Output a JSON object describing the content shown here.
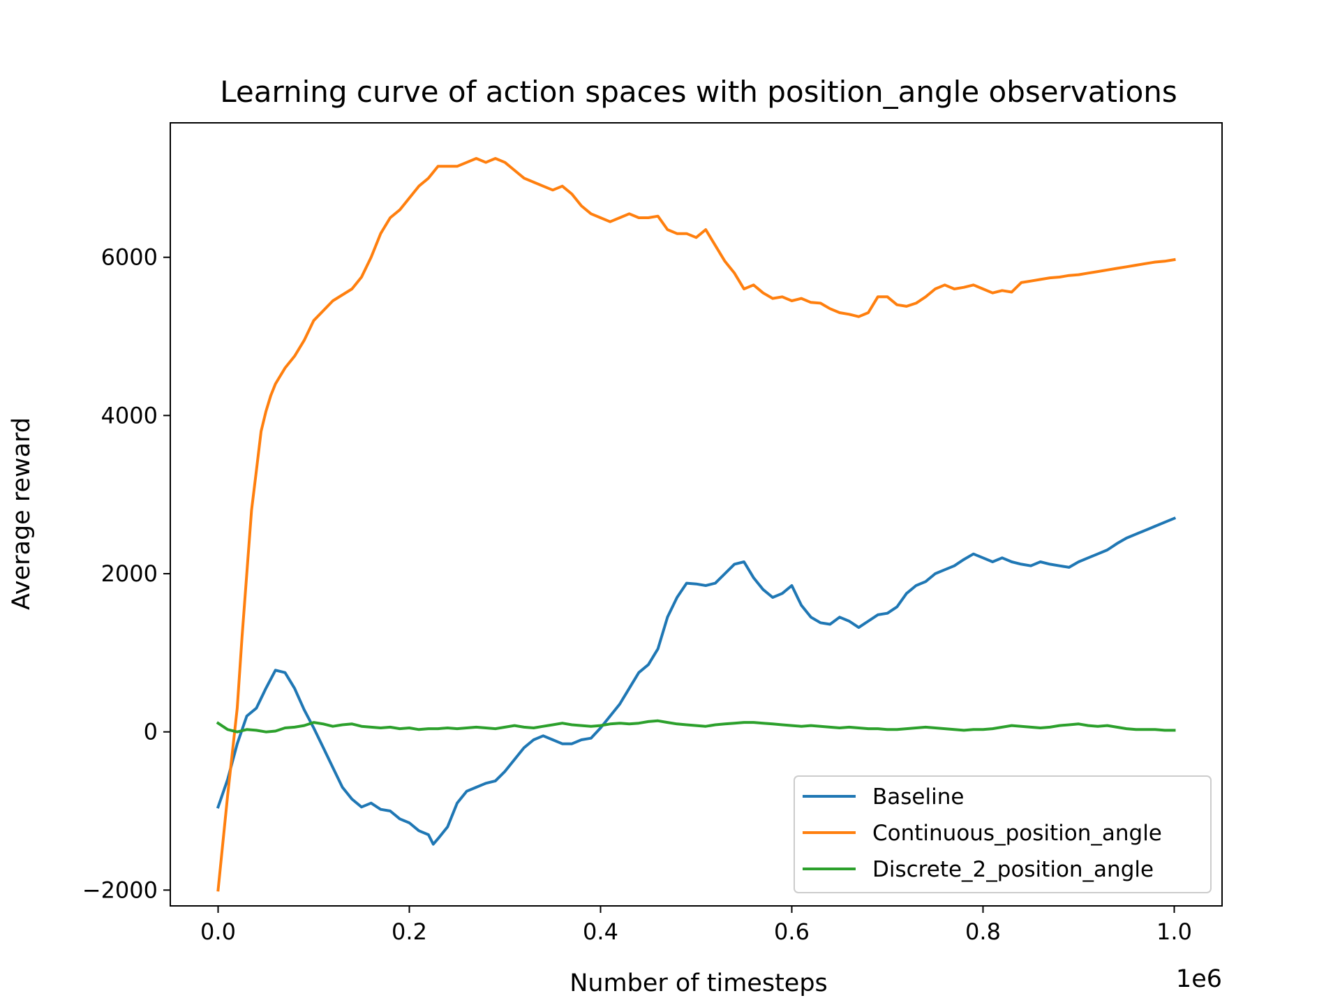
{
  "chart_data": {
    "type": "line",
    "title": "Learning curve of action spaces with position_angle observations",
    "xlabel": "Number of timesteps",
    "ylabel": "Average reward",
    "x_offset_label": "1e6",
    "xlim": [
      -0.05,
      1.05
    ],
    "ylim": [
      -2200,
      7700
    ],
    "x_ticks": [
      0.0,
      0.2,
      0.4,
      0.6,
      0.8,
      1.0
    ],
    "x_tick_labels": [
      "0.0",
      "0.2",
      "0.4",
      "0.6",
      "0.8",
      "1.0"
    ],
    "y_ticks": [
      -2000,
      0,
      2000,
      4000,
      6000
    ],
    "y_tick_labels": [
      "−2000",
      "0",
      "2000",
      "4000",
      "6000"
    ],
    "legend_position": "lower-right",
    "grid": false,
    "series": [
      {
        "name": "Baseline",
        "color": "#1f77b4",
        "x": [
          0.0,
          0.01,
          0.02,
          0.03,
          0.04,
          0.05,
          0.06,
          0.07,
          0.08,
          0.09,
          0.1,
          0.11,
          0.12,
          0.13,
          0.14,
          0.15,
          0.16,
          0.17,
          0.18,
          0.19,
          0.2,
          0.21,
          0.22,
          0.225,
          0.23,
          0.24,
          0.25,
          0.26,
          0.27,
          0.28,
          0.29,
          0.3,
          0.31,
          0.32,
          0.33,
          0.34,
          0.35,
          0.36,
          0.37,
          0.38,
          0.39,
          0.4,
          0.41,
          0.42,
          0.43,
          0.44,
          0.45,
          0.46,
          0.47,
          0.48,
          0.49,
          0.5,
          0.51,
          0.52,
          0.53,
          0.54,
          0.55,
          0.56,
          0.57,
          0.58,
          0.59,
          0.6,
          0.61,
          0.62,
          0.63,
          0.64,
          0.65,
          0.66,
          0.67,
          0.68,
          0.69,
          0.7,
          0.71,
          0.72,
          0.73,
          0.74,
          0.75,
          0.76,
          0.77,
          0.78,
          0.79,
          0.8,
          0.81,
          0.82,
          0.83,
          0.84,
          0.85,
          0.86,
          0.87,
          0.88,
          0.89,
          0.9,
          0.91,
          0.92,
          0.93,
          0.94,
          0.95,
          0.96,
          0.97,
          0.98,
          0.99,
          1.0
        ],
        "y": [
          -950,
          -600,
          -150,
          200,
          300,
          550,
          780,
          750,
          550,
          280,
          50,
          -200,
          -450,
          -700,
          -850,
          -950,
          -900,
          -980,
          -1000,
          -1100,
          -1150,
          -1250,
          -1300,
          -1420,
          -1350,
          -1200,
          -900,
          -750,
          -700,
          -650,
          -620,
          -500,
          -350,
          -200,
          -100,
          -50,
          -100,
          -150,
          -150,
          -100,
          -80,
          50,
          200,
          350,
          550,
          750,
          850,
          1050,
          1450,
          1700,
          1880,
          1870,
          1850,
          1880,
          2000,
          2120,
          2150,
          1950,
          1800,
          1700,
          1750,
          1850,
          1600,
          1450,
          1380,
          1360,
          1450,
          1400,
          1320,
          1400,
          1480,
          1500,
          1580,
          1750,
          1850,
          1900,
          2000,
          2050,
          2100,
          2180,
          2250,
          2200,
          2150,
          2200,
          2150,
          2120,
          2100,
          2150,
          2120,
          2100,
          2080,
          2150,
          2200,
          2250,
          2300,
          2380,
          2450,
          2500,
          2550,
          2600,
          2650,
          2700
        ]
      },
      {
        "name": "Continuous_position_angle",
        "color": "#ff7f0e",
        "x": [
          0.0,
          0.01,
          0.02,
          0.025,
          0.03,
          0.035,
          0.04,
          0.045,
          0.05,
          0.055,
          0.06,
          0.07,
          0.08,
          0.09,
          0.1,
          0.12,
          0.14,
          0.15,
          0.16,
          0.17,
          0.18,
          0.19,
          0.2,
          0.21,
          0.22,
          0.23,
          0.24,
          0.25,
          0.26,
          0.27,
          0.28,
          0.29,
          0.3,
          0.31,
          0.32,
          0.33,
          0.34,
          0.35,
          0.36,
          0.37,
          0.38,
          0.39,
          0.4,
          0.41,
          0.42,
          0.43,
          0.44,
          0.45,
          0.46,
          0.47,
          0.48,
          0.49,
          0.5,
          0.51,
          0.52,
          0.53,
          0.54,
          0.55,
          0.56,
          0.57,
          0.58,
          0.59,
          0.6,
          0.61,
          0.62,
          0.63,
          0.64,
          0.65,
          0.66,
          0.67,
          0.68,
          0.69,
          0.7,
          0.71,
          0.72,
          0.73,
          0.74,
          0.75,
          0.76,
          0.77,
          0.78,
          0.79,
          0.8,
          0.81,
          0.82,
          0.83,
          0.84,
          0.85,
          0.86,
          0.87,
          0.88,
          0.89,
          0.9,
          0.91,
          0.92,
          0.93,
          0.94,
          0.95,
          0.96,
          0.97,
          0.98,
          0.99,
          1.0
        ],
        "y": [
          -2000,
          -800,
          300,
          1200,
          2000,
          2800,
          3300,
          3800,
          4050,
          4250,
          4400,
          4600,
          4750,
          4950,
          5200,
          5450,
          5600,
          5750,
          6000,
          6300,
          6500,
          6600,
          6750,
          6900,
          7000,
          7150,
          7150,
          7150,
          7200,
          7250,
          7200,
          7250,
          7200,
          7100,
          7000,
          6950,
          6900,
          6850,
          6900,
          6800,
          6650,
          6550,
          6500,
          6450,
          6500,
          6550,
          6500,
          6500,
          6520,
          6350,
          6300,
          6300,
          6250,
          6350,
          6150,
          5950,
          5800,
          5600,
          5650,
          5550,
          5480,
          5500,
          5450,
          5480,
          5430,
          5420,
          5350,
          5300,
          5280,
          5250,
          5300,
          5500,
          5500,
          5400,
          5380,
          5420,
          5500,
          5600,
          5650,
          5600,
          5620,
          5650,
          5600,
          5550,
          5580,
          5560,
          5680,
          5700,
          5720,
          5740,
          5750,
          5770,
          5780,
          5800,
          5820,
          5840,
          5860,
          5880,
          5900,
          5920,
          5940,
          5950,
          5970
        ]
      },
      {
        "name": "Discrete_2_position_angle",
        "color": "#2ca02c",
        "x": [
          0.0,
          0.01,
          0.02,
          0.03,
          0.04,
          0.05,
          0.06,
          0.07,
          0.08,
          0.09,
          0.1,
          0.11,
          0.12,
          0.13,
          0.14,
          0.15,
          0.16,
          0.17,
          0.18,
          0.19,
          0.2,
          0.21,
          0.22,
          0.23,
          0.24,
          0.25,
          0.26,
          0.27,
          0.28,
          0.29,
          0.3,
          0.31,
          0.32,
          0.33,
          0.34,
          0.35,
          0.36,
          0.37,
          0.38,
          0.39,
          0.4,
          0.41,
          0.42,
          0.43,
          0.44,
          0.45,
          0.46,
          0.47,
          0.48,
          0.49,
          0.5,
          0.51,
          0.52,
          0.53,
          0.54,
          0.55,
          0.56,
          0.57,
          0.58,
          0.59,
          0.6,
          0.61,
          0.62,
          0.63,
          0.64,
          0.65,
          0.66,
          0.67,
          0.68,
          0.69,
          0.7,
          0.71,
          0.72,
          0.73,
          0.74,
          0.75,
          0.76,
          0.77,
          0.78,
          0.79,
          0.8,
          0.81,
          0.82,
          0.83,
          0.84,
          0.85,
          0.86,
          0.87,
          0.88,
          0.89,
          0.9,
          0.91,
          0.92,
          0.93,
          0.94,
          0.95,
          0.96,
          0.97,
          0.98,
          0.99,
          1.0
        ],
        "y": [
          110,
          30,
          0,
          30,
          20,
          0,
          10,
          50,
          60,
          80,
          120,
          100,
          70,
          90,
          100,
          70,
          60,
          50,
          60,
          40,
          50,
          30,
          40,
          40,
          50,
          40,
          50,
          60,
          50,
          40,
          60,
          80,
          60,
          50,
          70,
          90,
          110,
          90,
          80,
          70,
          80,
          100,
          110,
          100,
          110,
          130,
          140,
          120,
          100,
          90,
          80,
          70,
          90,
          100,
          110,
          120,
          120,
          110,
          100,
          90,
          80,
          70,
          80,
          70,
          60,
          50,
          60,
          50,
          40,
          40,
          30,
          30,
          40,
          50,
          60,
          50,
          40,
          30,
          20,
          30,
          30,
          40,
          60,
          80,
          70,
          60,
          50,
          60,
          80,
          90,
          100,
          80,
          70,
          80,
          60,
          40,
          30,
          30,
          30,
          20,
          20
        ]
      }
    ]
  }
}
